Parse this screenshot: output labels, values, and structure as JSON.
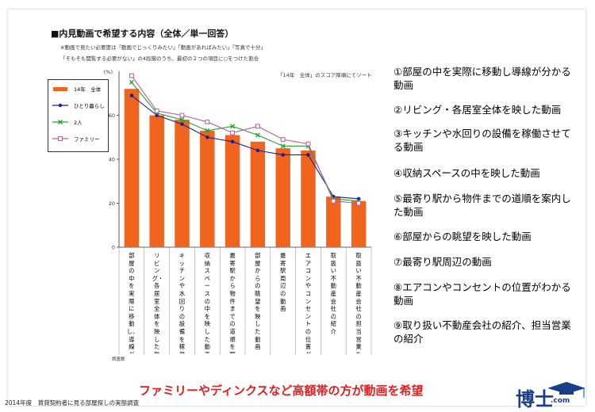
{
  "header": {
    "title": "■内見動画で希望する内容（全体／単一回答）",
    "note1": "※動画で見たい必要度は「動画でじっくりみたい」「動画があればみたい」「写真で十分」",
    "note2": "「そもそも閲覧する必要がない」の4段階のうち、最初の２つの項目に○をつけた割合",
    "sort_note": "「14年　全体」のスコア降順にてソート"
  },
  "chart_data": {
    "type": "bar",
    "ylim": [
      0,
      80
    ],
    "yticks": [
      "0",
      "20",
      "40",
      "60"
    ],
    "y_unit": "(%)",
    "categories": [
      "部屋の中を実際に移動し、導線がわかる動画",
      "リビング・各居室全体を映した動画",
      "キッチンや水回りの設備を稼働させてる動画（ガスコンロの火、シャワーの水圧等）",
      "収納スペースの中を映した動画",
      "最寄駅から物件までの道順を案内した動画",
      "部屋からの眺望を映した動画",
      "最寄駅周辺の動画",
      "エアコンやコンセントの位置がわかる動画",
      "取扱い不動産会社の紹介",
      "取扱い不動産会社の担当営業を紹介する動画"
    ],
    "series": [
      {
        "name": "14年　全体",
        "kind": "bar",
        "color": "#f0641e",
        "values": [
          72,
          60,
          58,
          53,
          51,
          48,
          45,
          44,
          23,
          21
        ]
      },
      {
        "name": "ひとり暮らし",
        "kind": "line",
        "color": "#1f1f8f",
        "marker": "circle",
        "values": [
          69,
          60,
          56,
          50,
          48,
          44,
          42,
          42,
          23,
          22
        ]
      },
      {
        "name": "2人",
        "kind": "line",
        "color": "#2aa02a",
        "marker": "cross",
        "values": [
          75,
          61,
          58,
          53,
          55,
          51,
          46,
          46,
          22,
          21
        ]
      },
      {
        "name": "ファミリー",
        "kind": "line",
        "color": "#b0609a",
        "marker": "square",
        "values": [
          78,
          62,
          60,
          57,
          52,
          55,
          49,
          47,
          21,
          20
        ]
      }
    ],
    "xaxis_caption": "調査数"
  },
  "right_list": [
    "①部屋の中を実際に移動し導線が分かる動画",
    "②リビング・各居室全体を映した動画",
    "③キッチンや水回りの設備を稼働させてる動画",
    "④収納スペースの中を映した動画",
    "⑤最寄り駅から物件までの道順を案内した動画",
    "⑥部屋からの眺望を映した動画",
    "⑦最寄り駅周辺の動画",
    "⑧エアコンやコンセントの位置がわかる動画",
    "⑨取り扱い不動産会社の紹介、担当営業の紹介"
  ],
  "headline": "ファミリーやディンクスなど高額帯の方が動画を希望",
  "footer": "2014年度　賃貸契約者に見る部屋探しの実態調査",
  "logo": {
    "main": "博士",
    "suffix": ".com"
  }
}
